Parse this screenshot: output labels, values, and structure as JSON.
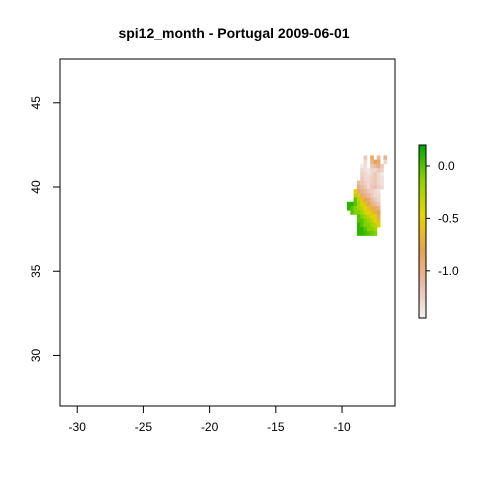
{
  "chart_data": {
    "type": "heatmap",
    "title": "spi12_month - Portugal 2009-06-01",
    "xlabel": "",
    "ylabel": "",
    "xlim": [
      -31.3,
      -6.0
    ],
    "ylim": [
      27.0,
      47.6
    ],
    "x_ticks": [
      -30,
      -25,
      -20,
      -15,
      -10
    ],
    "x_tick_labels": [
      "-30",
      "-25",
      "-20",
      "-15",
      "-10"
    ],
    "y_ticks": [
      30,
      35,
      40,
      45
    ],
    "y_tick_labels": [
      "30",
      "35",
      "40",
      "45"
    ],
    "grid": false,
    "cell_size_deg": 0.25,
    "colorbar": {
      "min": -1.45,
      "max": 0.2,
      "ticks": [
        0.0,
        -0.5,
        -1.0
      ],
      "tick_labels": [
        "0.0",
        "-0.5",
        "-1.0"
      ],
      "palette": [
        "#f2f2f2",
        "#ebb9a6",
        "#e6a24d",
        "#e6d500",
        "#8fd400",
        "#00a600"
      ]
    },
    "cells": [
      [
        -8.25,
        41.75,
        -1.2
      ],
      [
        -7.75,
        41.75,
        -0.9
      ],
      [
        -7.25,
        41.75,
        -1.1
      ],
      [
        -6.75,
        41.75,
        -1.0
      ],
      [
        -8.25,
        41.5,
        -1.3
      ],
      [
        -7.75,
        41.5,
        -1.0
      ],
      [
        -7.5,
        41.5,
        -0.8
      ],
      [
        -7.25,
        41.5,
        -0.9
      ],
      [
        -6.75,
        41.5,
        -1.3
      ],
      [
        -8.5,
        41.25,
        -1.4
      ],
      [
        -8.25,
        41.25,
        -1.35
      ],
      [
        -7.75,
        41.25,
        -1.2
      ],
      [
        -7.5,
        41.25,
        -1.1
      ],
      [
        -7.25,
        41.25,
        -1.0
      ],
      [
        -7.0,
        41.25,
        -1.2
      ],
      [
        -8.5,
        41.0,
        -1.3
      ],
      [
        -8.25,
        41.0,
        -1.35
      ],
      [
        -8.0,
        41.0,
        -1.4
      ],
      [
        -7.75,
        41.0,
        -1.3
      ],
      [
        -7.5,
        41.0,
        -1.3
      ],
      [
        -7.25,
        41.0,
        -1.2
      ],
      [
        -7.0,
        41.0,
        -1.25
      ],
      [
        -8.5,
        40.75,
        -1.25
      ],
      [
        -8.25,
        40.75,
        -1.3
      ],
      [
        -8.0,
        40.75,
        -1.35
      ],
      [
        -7.75,
        40.75,
        -1.3
      ],
      [
        -7.5,
        40.75,
        -1.2
      ],
      [
        -7.25,
        40.75,
        -1.3
      ],
      [
        -7.0,
        40.75,
        -1.4
      ],
      [
        -8.5,
        40.5,
        -1.2
      ],
      [
        -8.25,
        40.5,
        -1.3
      ],
      [
        -8.0,
        40.5,
        -1.3
      ],
      [
        -7.75,
        40.5,
        -1.25
      ],
      [
        -7.5,
        40.5,
        -1.2
      ],
      [
        -7.25,
        40.5,
        -1.3
      ],
      [
        -7.0,
        40.5,
        -1.35
      ],
      [
        -8.75,
        40.25,
        -1.1
      ],
      [
        -8.5,
        40.25,
        -1.2
      ],
      [
        -8.25,
        40.25,
        -1.25
      ],
      [
        -8.0,
        40.25,
        -1.3
      ],
      [
        -7.75,
        40.25,
        -1.25
      ],
      [
        -7.5,
        40.25,
        -1.2
      ],
      [
        -7.25,
        40.25,
        -1.3
      ],
      [
        -7.0,
        40.25,
        -1.35
      ],
      [
        -8.75,
        40.0,
        -1.0
      ],
      [
        -8.5,
        40.0,
        -1.1
      ],
      [
        -8.25,
        40.0,
        -1.2
      ],
      [
        -8.0,
        40.0,
        -1.3
      ],
      [
        -7.75,
        40.0,
        -1.2
      ],
      [
        -7.5,
        40.0,
        -1.15
      ],
      [
        -7.25,
        40.0,
        -1.25
      ],
      [
        -7.0,
        40.0,
        -1.3
      ],
      [
        -9.0,
        39.75,
        -0.5
      ],
      [
        -8.75,
        39.75,
        -0.9
      ],
      [
        -8.5,
        39.75,
        -1.0
      ],
      [
        -8.25,
        39.75,
        -1.1
      ],
      [
        -8.0,
        39.75,
        -1.2
      ],
      [
        -7.75,
        39.75,
        -1.25
      ],
      [
        -7.5,
        39.75,
        -1.3
      ],
      [
        -7.25,
        39.75,
        -1.35
      ],
      [
        -9.0,
        39.5,
        -0.3
      ],
      [
        -8.75,
        39.5,
        -0.6
      ],
      [
        -8.5,
        39.5,
        -0.9
      ],
      [
        -8.25,
        39.5,
        -1.0
      ],
      [
        -8.0,
        39.5,
        -1.1
      ],
      [
        -7.75,
        39.5,
        -1.2
      ],
      [
        -7.5,
        39.5,
        -1.3
      ],
      [
        -7.25,
        39.5,
        -1.3
      ],
      [
        -9.0,
        39.25,
        0.0
      ],
      [
        -8.75,
        39.25,
        -0.3
      ],
      [
        -8.5,
        39.25,
        -0.6
      ],
      [
        -8.25,
        39.25,
        -0.8
      ],
      [
        -8.0,
        39.25,
        -0.9
      ],
      [
        -7.75,
        39.25,
        -1.1
      ],
      [
        -7.5,
        39.25,
        -1.2
      ],
      [
        -7.25,
        39.25,
        -1.3
      ],
      [
        -9.5,
        39.0,
        0.1
      ],
      [
        -9.25,
        39.0,
        0.1
      ],
      [
        -9.0,
        39.0,
        0.0
      ],
      [
        -8.75,
        39.0,
        -0.2
      ],
      [
        -8.5,
        39.0,
        -0.4
      ],
      [
        -8.25,
        39.0,
        -0.6
      ],
      [
        -8.0,
        39.0,
        -0.8
      ],
      [
        -7.75,
        39.0,
        -1.0
      ],
      [
        -7.5,
        39.0,
        -1.1
      ],
      [
        -7.25,
        39.0,
        -1.2
      ],
      [
        -9.5,
        38.75,
        0.1
      ],
      [
        -9.25,
        38.75,
        0.0
      ],
      [
        -9.0,
        38.75,
        -0.1
      ],
      [
        -8.75,
        38.75,
        -0.2
      ],
      [
        -8.5,
        38.75,
        -0.3
      ],
      [
        -8.25,
        38.75,
        -0.5
      ],
      [
        -8.0,
        38.75,
        -0.6
      ],
      [
        -7.75,
        38.75,
        -0.7
      ],
      [
        -7.5,
        38.75,
        -0.9
      ],
      [
        -7.25,
        38.75,
        -1.0
      ],
      [
        -9.25,
        38.5,
        0.0
      ],
      [
        -9.0,
        38.5,
        -0.1
      ],
      [
        -8.75,
        38.5,
        -0.1
      ],
      [
        -8.5,
        38.5,
        -0.2
      ],
      [
        -8.25,
        38.5,
        -0.4
      ],
      [
        -8.0,
        38.5,
        -0.5
      ],
      [
        -7.75,
        38.5,
        -0.6
      ],
      [
        -7.5,
        38.5,
        -0.7
      ],
      [
        -7.25,
        38.5,
        -0.8
      ],
      [
        -8.75,
        38.25,
        0.0
      ],
      [
        -8.5,
        38.25,
        -0.1
      ],
      [
        -8.25,
        38.25,
        -0.2
      ],
      [
        -8.0,
        38.25,
        -0.3
      ],
      [
        -7.75,
        38.25,
        -0.4
      ],
      [
        -7.5,
        38.25,
        -0.5
      ],
      [
        -7.25,
        38.25,
        -0.9
      ],
      [
        -8.75,
        38.0,
        0.0
      ],
      [
        -8.5,
        38.0,
        0.0
      ],
      [
        -8.25,
        38.0,
        -0.1
      ],
      [
        -8.0,
        38.0,
        -0.2
      ],
      [
        -7.75,
        38.0,
        -0.3
      ],
      [
        -7.5,
        38.0,
        -0.5
      ],
      [
        -7.25,
        38.0,
        -0.6
      ],
      [
        -8.75,
        37.75,
        0.1
      ],
      [
        -8.5,
        37.75,
        0.0
      ],
      [
        -8.25,
        37.75,
        -0.1
      ],
      [
        -8.0,
        37.75,
        -0.1
      ],
      [
        -7.75,
        37.75,
        -0.2
      ],
      [
        -7.5,
        37.75,
        -0.3
      ],
      [
        -7.25,
        37.75,
        -0.4
      ],
      [
        -8.75,
        37.5,
        0.1
      ],
      [
        -8.5,
        37.5,
        0.1
      ],
      [
        -8.25,
        37.5,
        0.0
      ],
      [
        -8.0,
        37.5,
        -0.1
      ],
      [
        -7.75,
        37.5,
        -0.1
      ],
      [
        -7.5,
        37.5,
        -0.2
      ],
      [
        -8.75,
        37.25,
        0.1
      ],
      [
        -8.5,
        37.25,
        0.1
      ],
      [
        -8.25,
        37.25,
        0.05
      ],
      [
        -8.0,
        37.25,
        0.0
      ],
      [
        -7.75,
        37.25,
        -0.05
      ],
      [
        -7.5,
        37.25,
        -0.1
      ]
    ]
  }
}
